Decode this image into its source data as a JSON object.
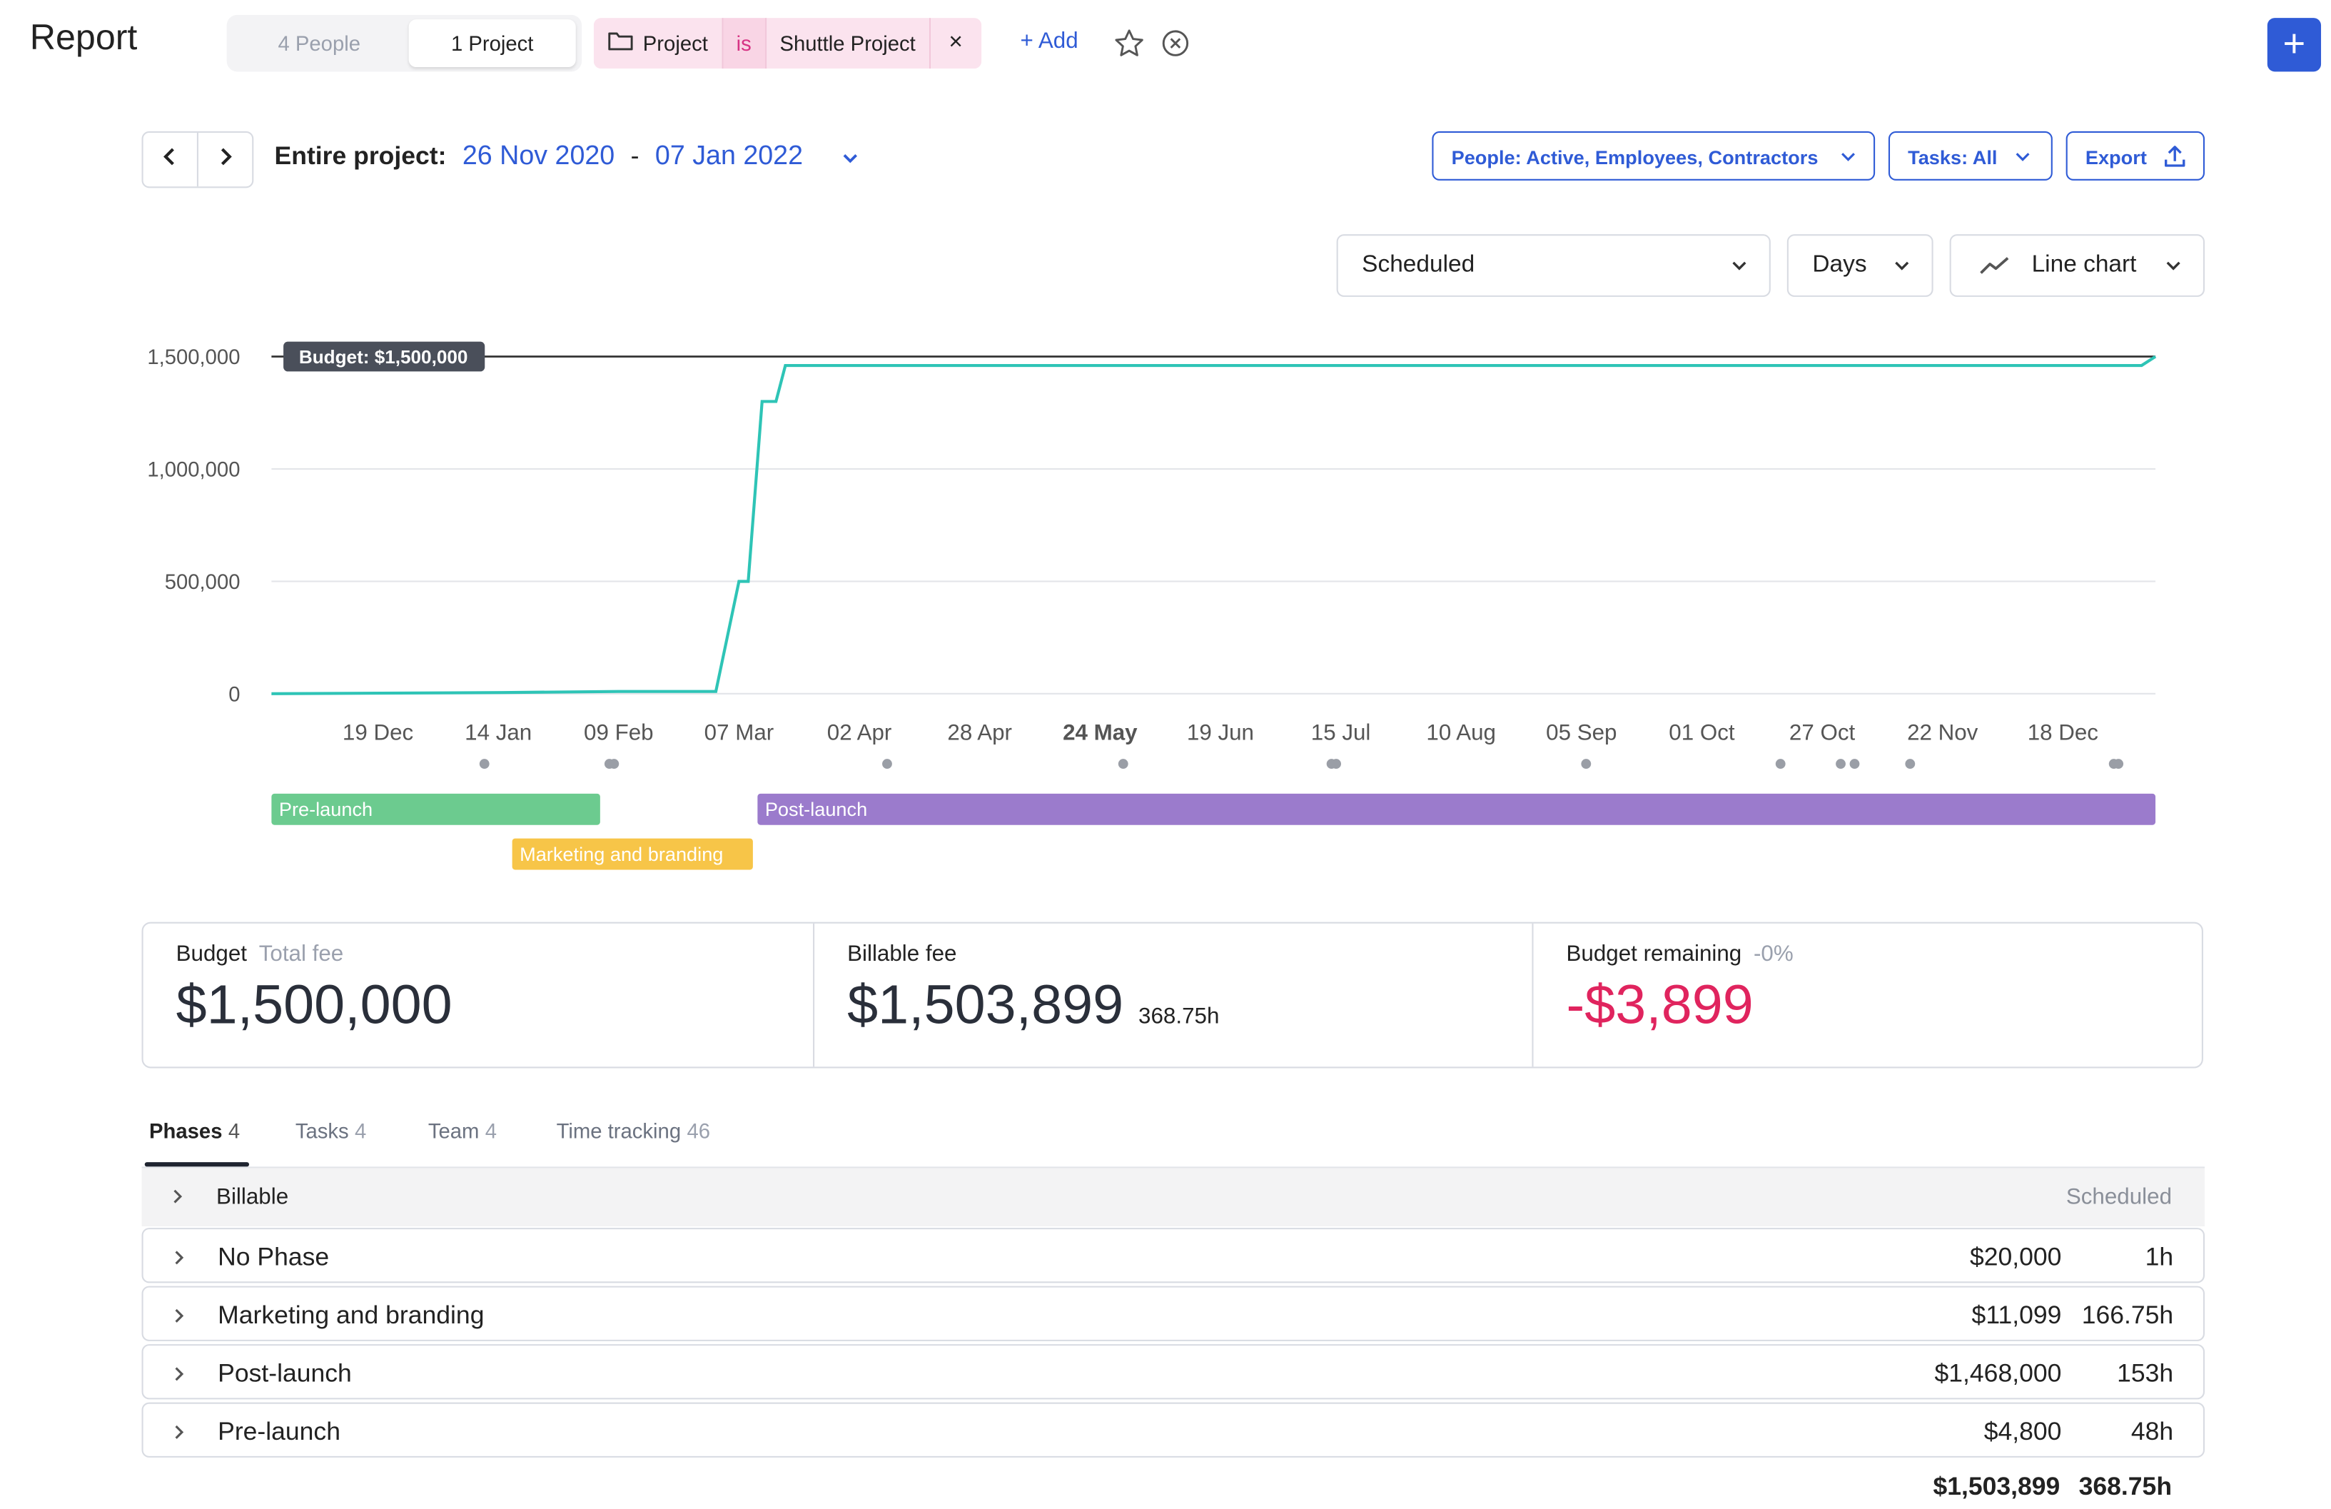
{
  "header": {
    "title": "Report",
    "segments": [
      {
        "label": "4 People",
        "active": false
      },
      {
        "label": "1 Project",
        "active": true
      }
    ],
    "filter": {
      "field": "Project",
      "operator": "is",
      "value": "Shuttle Project",
      "remove": "×"
    },
    "add_label": "+ Add",
    "plus_label": "+"
  },
  "range": {
    "label": "Entire project:",
    "start": "26 Nov 2020",
    "separator": "-",
    "end": "07 Jan 2022"
  },
  "filters": {
    "people": "People: Active, Employees, Contractors",
    "tasks": "Tasks: All",
    "export": "Export"
  },
  "selects": {
    "metric": "Scheduled",
    "interval": "Days",
    "chart_type": "Line chart"
  },
  "chart_data": {
    "type": "line",
    "y_ticks": [
      "1,500,000",
      "1,000,000",
      "500,000",
      "0"
    ],
    "ylim": [
      0,
      1500000
    ],
    "x_ticks": [
      "19 Dec",
      "14 Jan",
      "09 Feb",
      "07 Mar",
      "02 Apr",
      "28 Apr",
      "24 May",
      "19 Jun",
      "15 Jul",
      "10 Aug",
      "05 Sep",
      "01 Oct",
      "27 Oct",
      "22 Nov",
      "18 Dec"
    ],
    "x_bold_tick": "24 May",
    "budget_label": "Budget: $1,500,000",
    "budget_value": 1500000,
    "series": [
      {
        "color": "#2ec4b6",
        "points": [
          [
            "26 Nov 2020",
            0
          ],
          [
            "15 Jan 2021",
            5000
          ],
          [
            "09 Feb 2021",
            10000
          ],
          [
            "02 Mar 2021",
            10000
          ],
          [
            "07 Mar 2021",
            500000
          ],
          [
            "09 Mar 2021",
            500000
          ],
          [
            "12 Mar 2021",
            1300000
          ],
          [
            "15 Mar 2021",
            1300000
          ],
          [
            "17 Mar 2021",
            1460000
          ],
          [
            "04 Jan 2022",
            1460000
          ],
          [
            "07 Jan 2022",
            1500000
          ]
        ]
      }
    ],
    "markers": [
      "11 Jan",
      "07 Feb",
      "08 Feb",
      "08 Apr",
      "29 May",
      "13 Jul",
      "14 Jul",
      "06 Sep",
      "18 Oct",
      "31 Oct",
      "03 Nov",
      "15 Nov",
      "29 Dec",
      "30 Dec"
    ],
    "phase_bars": [
      {
        "label": "Pre-launch",
        "start": "26 Nov 2020",
        "end": "05 Feb 2021",
        "color": "#6ccb8f"
      },
      {
        "label": "Marketing and branding",
        "start": "17 Jan 2021",
        "end": "10 Mar 2021",
        "color": "#f7c548"
      },
      {
        "label": "Post-launch",
        "start": "11 Mar 2021",
        "end": "07 Jan 2022",
        "color": "#9b7bcc"
      }
    ]
  },
  "summary": {
    "budget": {
      "label": "Budget",
      "sublabel": "Total fee",
      "value": "$1,500,000"
    },
    "billable": {
      "label": "Billable fee",
      "value": "$1,503,899",
      "hours": "368.75h"
    },
    "remaining": {
      "label": "Budget remaining",
      "sublabel": "-0%",
      "value": "-$3,899"
    }
  },
  "tabs": [
    {
      "label": "Phases",
      "count": "4",
      "active": true
    },
    {
      "label": "Tasks",
      "count": "4",
      "active": false
    },
    {
      "label": "Team",
      "count": "4",
      "active": false
    },
    {
      "label": "Time tracking",
      "count": "46",
      "active": false
    }
  ],
  "table": {
    "group_label": "Billable",
    "column_label": "Scheduled",
    "rows": [
      {
        "name": "No Phase",
        "amount": "$20,000",
        "hours": "1h"
      },
      {
        "name": "Marketing and branding",
        "amount": "$11,099",
        "hours": "166.75h"
      },
      {
        "name": "Post-launch",
        "amount": "$1,468,000",
        "hours": "153h"
      },
      {
        "name": "Pre-launch",
        "amount": "$4,800",
        "hours": "48h"
      }
    ],
    "total_amount": "$1,503,899",
    "total_hours": "368.75h"
  }
}
